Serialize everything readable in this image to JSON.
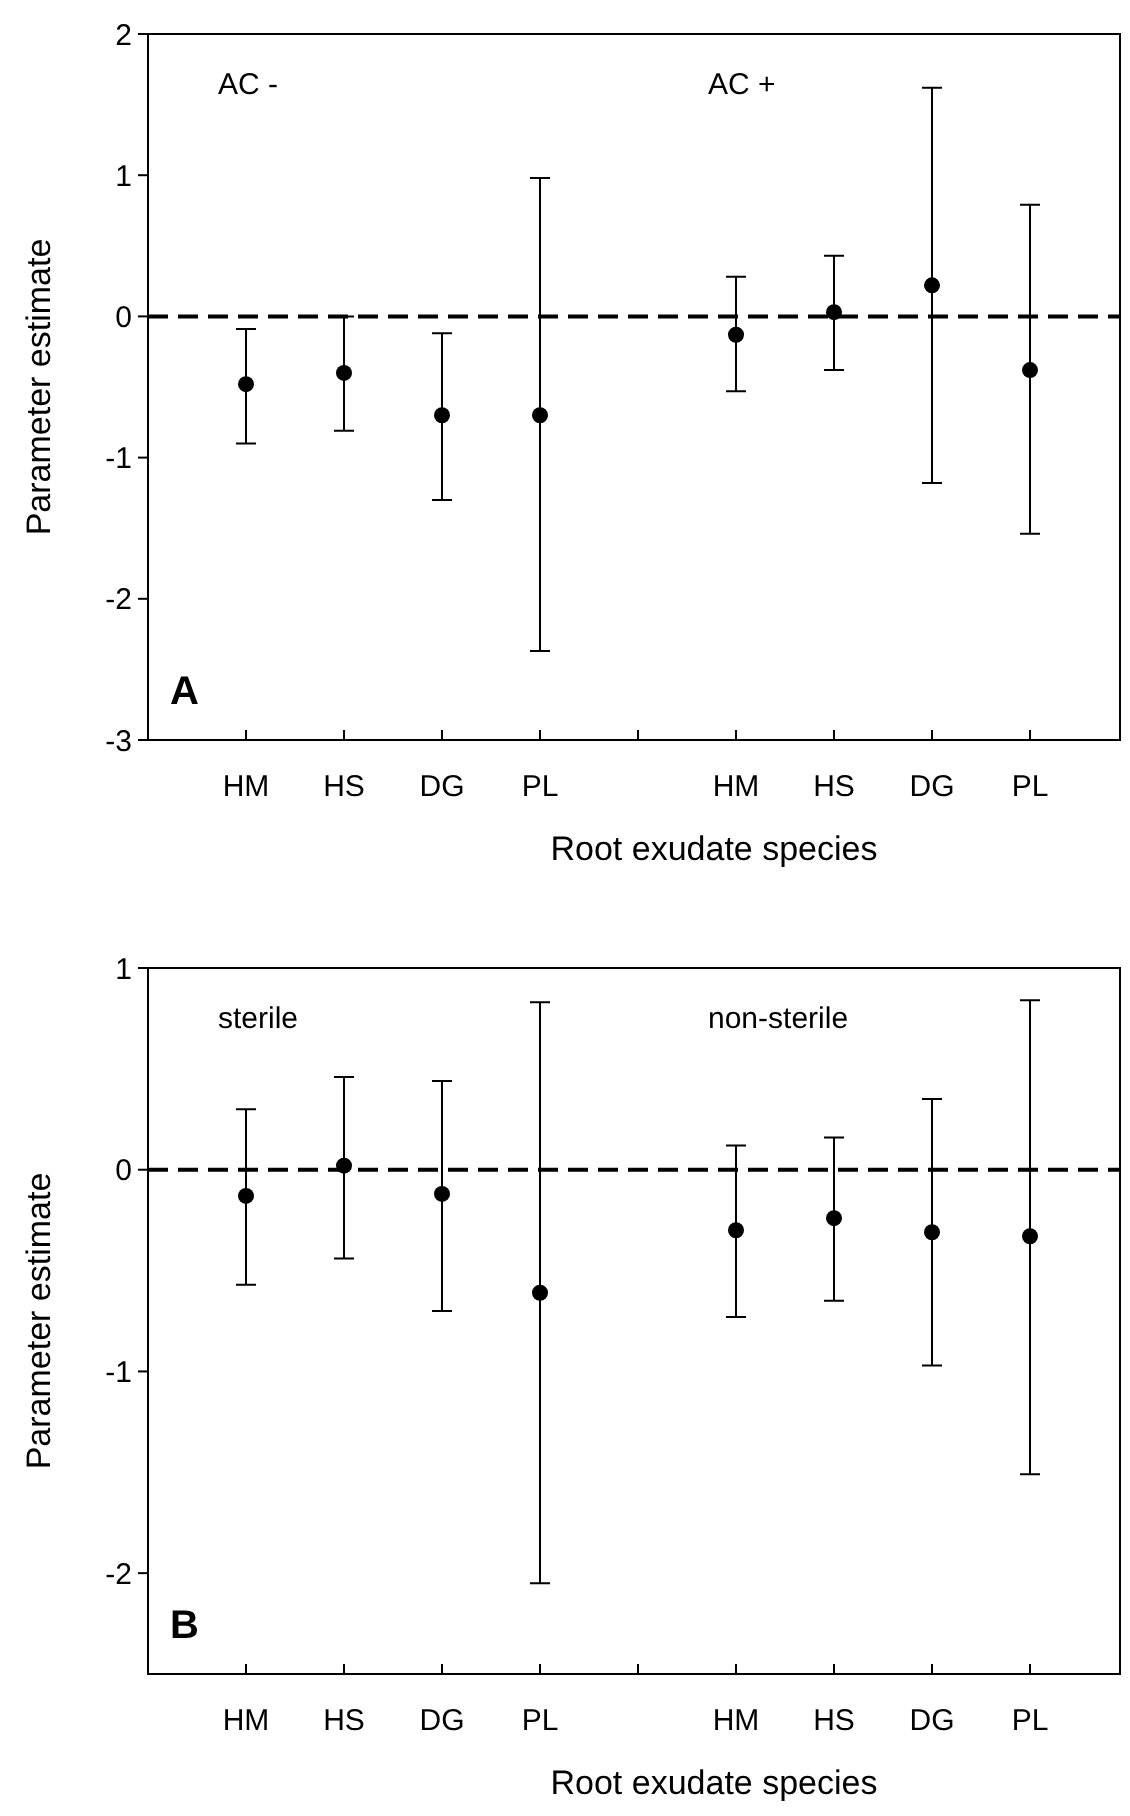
{
  "chart_data": [
    {
      "type": "scatter",
      "title": "A",
      "xlabel": "Root exudate species",
      "ylabel": "Parameter estimate",
      "categories": [
        "HM",
        "HS",
        "DG",
        "PL",
        null,
        "HM",
        "HS",
        "DG",
        "PL"
      ],
      "series": [
        {
          "color": "#000000",
          "values": [
            -0.48,
            -0.4,
            -0.7,
            -0.7,
            null,
            -0.13,
            0.03,
            0.22,
            -0.38
          ],
          "errors": [
            [
              -0.9,
              -0.09
            ],
            [
              -0.81,
              0.0
            ],
            [
              -1.3,
              -0.12
            ],
            [
              -2.37,
              0.98
            ],
            null,
            [
              -0.53,
              0.28
            ],
            [
              -0.38,
              0.43
            ],
            [
              -1.18,
              1.62
            ],
            [
              -1.54,
              0.79
            ]
          ]
        }
      ],
      "ylim": [
        -3,
        2
      ],
      "yticks": [
        -3,
        -2,
        -1,
        0,
        1,
        2
      ],
      "marker": "circle",
      "grid": false,
      "ref_lines": [
        {
          "axis": "y",
          "value": 0,
          "line_style": "dashed",
          "color": "#000000"
        }
      ],
      "annotations": [
        "AC -",
        "AC +"
      ]
    },
    {
      "type": "scatter",
      "title": "B",
      "xlabel": "Root exudate species",
      "ylabel": "Parameter estimate",
      "categories": [
        "HM",
        "HS",
        "DG",
        "PL",
        null,
        "HM",
        "HS",
        "DG",
        "PL"
      ],
      "series": [
        {
          "color": "#000000",
          "values": [
            -0.13,
            0.02,
            -0.12,
            -0.61,
            null,
            -0.3,
            -0.24,
            -0.31,
            -0.33
          ],
          "errors": [
            [
              -0.57,
              0.3
            ],
            [
              -0.44,
              0.46
            ],
            [
              -0.7,
              0.44
            ],
            [
              -2.05,
              0.83
            ],
            null,
            [
              -0.73,
              0.12
            ],
            [
              -0.65,
              0.16
            ],
            [
              -0.97,
              0.35
            ],
            [
              -1.51,
              0.84
            ]
          ]
        }
      ],
      "ylim": [
        -2.5,
        1
      ],
      "yticks": [
        -2,
        -1,
        0,
        1
      ],
      "marker": "circle",
      "grid": false,
      "ref_lines": [
        {
          "axis": "y",
          "value": 0,
          "line_style": "dashed",
          "color": "#000000"
        }
      ],
      "annotations": [
        "sterile",
        "non-sterile"
      ]
    }
  ]
}
